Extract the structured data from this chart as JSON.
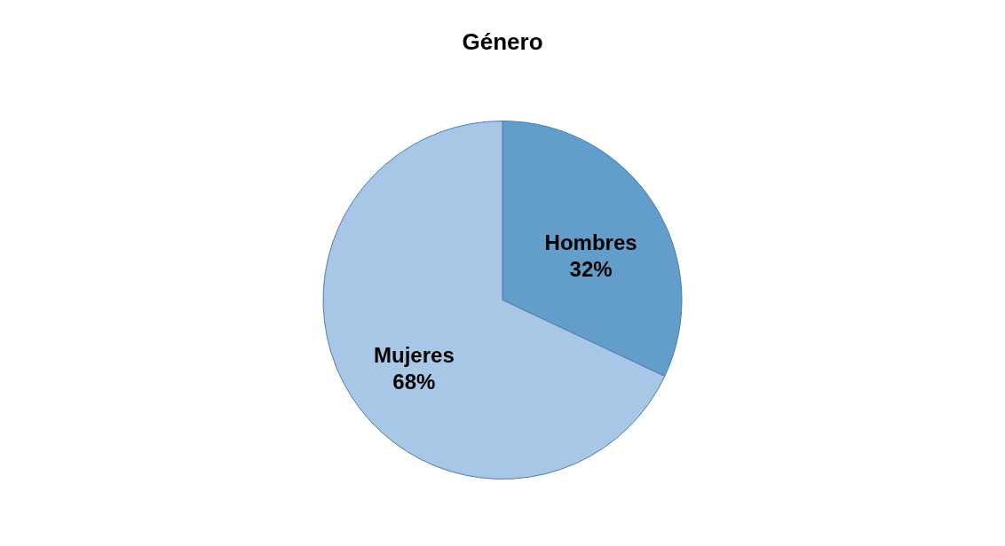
{
  "chart_data": {
    "type": "pie",
    "title": "Género",
    "categories": [
      "Hombres",
      "Mujeres"
    ],
    "values": [
      32,
      68
    ],
    "colors": [
      "#629ec9",
      "#a8c6e5"
    ],
    "value_labels": [
      "32%",
      "68%"
    ],
    "legend": false
  }
}
